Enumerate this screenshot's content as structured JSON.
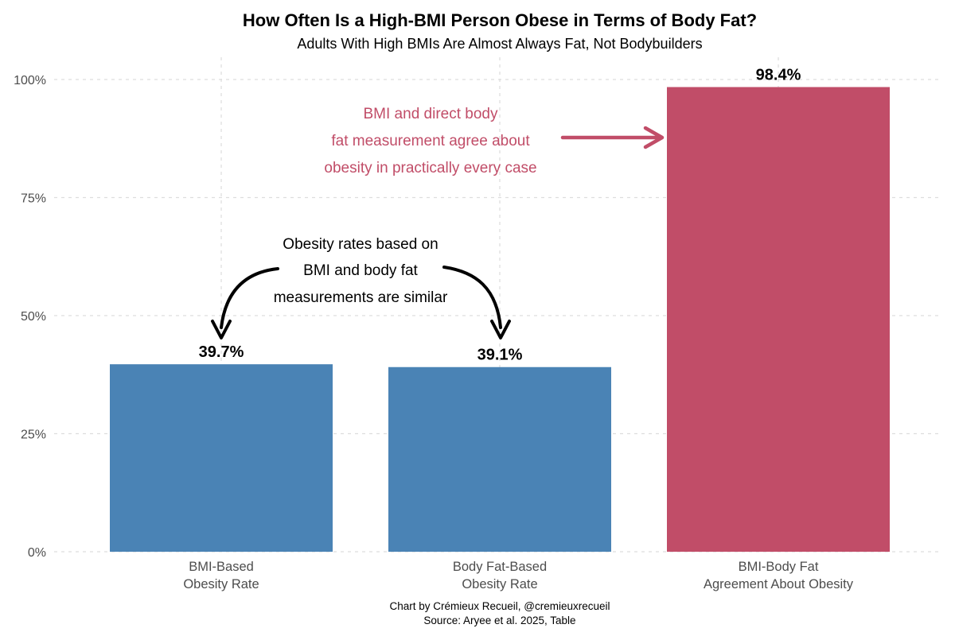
{
  "title": "How Often Is a High-BMI Person Obese in Terms of Body Fat?",
  "subtitle": "Adults With High BMIs Are Almost Always Fat, Not Bodybuilders",
  "caption": {
    "line1": "Chart by Crémieux Recueil, @cremieuxrecueil",
    "line2": "Source: Aryee et al. 2025, Table"
  },
  "colors": {
    "blue": "#4A83B5",
    "crimson": "#C14D68",
    "grid": "#DDDDDD",
    "axis_text": "#4D4D4D",
    "black": "#000000"
  },
  "chart_data": {
    "type": "bar",
    "categories": [
      [
        "BMI-Based",
        "Obesity Rate"
      ],
      [
        "Body Fat-Based",
        "Obesity Rate"
      ],
      [
        "BMI-Body Fat",
        "Agreement About Obesity"
      ]
    ],
    "values": [
      39.7,
      39.1,
      98.4
    ],
    "value_labels": [
      "39.7%",
      "39.1%",
      "98.4%"
    ],
    "bar_colors": [
      "#4A83B5",
      "#4A83B5",
      "#C14D68"
    ],
    "title": "How Often Is a High-BMI Person Obese in Terms of Body Fat?",
    "subtitle": "Adults With High BMIs Are Almost Always Fat, Not Bodybuilders",
    "xlabel": "",
    "ylabel": "",
    "ylim": [
      0,
      100
    ],
    "yticks": [
      0,
      25,
      50,
      75,
      100
    ],
    "ytick_labels": [
      "0%",
      "25%",
      "50%",
      "75%",
      "100%"
    ],
    "grid": "dashed horizontal lines at yticks and dashed vertical lines at category centers",
    "legend": "none"
  },
  "annotations": {
    "agree": {
      "lines": [
        "BMI and direct body",
        "fat measurement agree about",
        "obesity in practically every case"
      ],
      "color": "#C14D68",
      "arrow": "straight arrow pointing right to the 98.4% bar"
    },
    "similar": {
      "lines": [
        "Obesity rates based on",
        "BMI and body fat",
        "measurements are similar"
      ],
      "color": "#000000",
      "arrows": "two curved arrows pointing down to the 39.7% and 39.1% value labels"
    }
  }
}
